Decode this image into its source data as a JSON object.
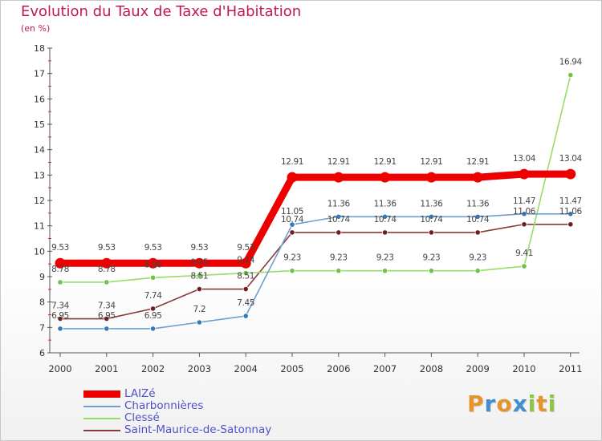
{
  "header": {
    "title": "Evolution du Taux de Taxe d'Habitation",
    "subtitle": "(en %)"
  },
  "brand": {
    "text": "Proxiti",
    "colors": [
      "#e5932b",
      "#3f8fd1",
      "#e5932b",
      "#3f8fd1",
      "#8dc63f",
      "#e5932b",
      "#8dc63f"
    ]
  },
  "chart_data": {
    "type": "line",
    "title": "Evolution du Taux de Taxe d'Habitation",
    "subtitle": "(en %)",
    "xlabel": "",
    "ylabel": "(en %)",
    "x": [
      "2000",
      "2001",
      "2002",
      "2003",
      "2004",
      "2005",
      "2006",
      "2007",
      "2008",
      "2009",
      "2010",
      "2011"
    ],
    "ylim": [
      6,
      18
    ],
    "yticks": [
      6,
      7,
      8,
      9,
      10,
      11,
      12,
      13,
      14,
      15,
      16,
      17,
      18
    ],
    "grid": false,
    "legend_position": "bottom-left",
    "series": [
      {
        "name": "LAIZé",
        "color": "#ee0000",
        "values": [
          9.53,
          9.53,
          9.53,
          9.53,
          9.53,
          12.91,
          12.91,
          12.91,
          12.91,
          12.91,
          13.04,
          13.04
        ],
        "labels": [
          "9.53",
          "9.53",
          "9.53",
          "9.53",
          "9.53",
          "12.91",
          "12.91",
          "12.91",
          "12.91",
          "12.91",
          "13.04",
          "13.04"
        ]
      },
      {
        "name": "Charbonnières",
        "color": "#6f9fce",
        "marker_color": "#3778b8",
        "values": [
          6.95,
          6.95,
          6.95,
          7.2,
          7.45,
          11.05,
          11.36,
          11.36,
          11.36,
          11.36,
          11.47,
          11.47
        ],
        "labels": [
          "6.95",
          "6.95",
          "6.95",
          "7.2",
          "7.45",
          "11.05",
          "11.36",
          "11.36",
          "11.36",
          "11.36",
          "11.47",
          "11.47"
        ]
      },
      {
        "name": "Clessé",
        "color": "#97dd6a",
        "marker_color": "#72c246",
        "values": [
          8.78,
          8.78,
          8.96,
          9.05,
          9.14,
          9.23,
          9.23,
          9.23,
          9.23,
          9.23,
          9.41,
          16.94
        ],
        "labels": [
          "8.78",
          "8.78",
          "8.96",
          "9.05",
          "9.14",
          "9.23",
          "9.23",
          "9.23",
          "9.23",
          "9.23",
          "9.41",
          "16.94"
        ]
      },
      {
        "name": "Saint-Maurice-de-Satonnay",
        "color": "#8a3a3a",
        "marker_color": "#6e1f1f",
        "values": [
          7.34,
          7.34,
          7.74,
          8.51,
          8.51,
          10.74,
          10.74,
          10.74,
          10.74,
          10.74,
          11.06,
          11.06
        ],
        "labels": [
          "7.34",
          "7.34",
          "7.74",
          "8.51",
          "8.51",
          "10.74",
          "10.74",
          "10.74",
          "10.74",
          "10.74",
          "11.06",
          "11.06"
        ]
      }
    ]
  }
}
